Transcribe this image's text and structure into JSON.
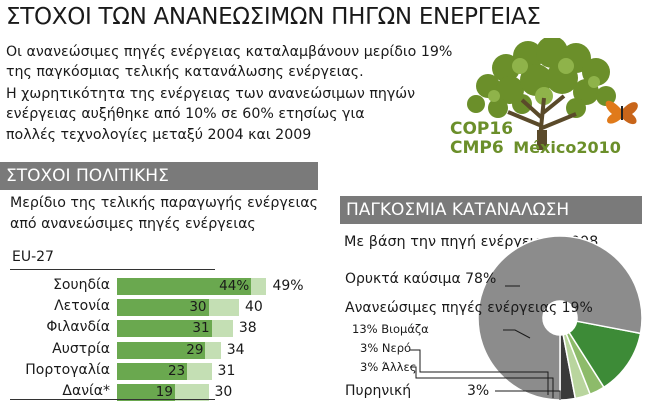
{
  "title": "ΣΤΟΧΟΙ ΤΩΝ ΑΝΑΝΕΩΣΙΜΩΝ ΠΗΓΩΝ ΕΝΕΡΓΕΙΑΣ",
  "intro": [
    "Οι ανανεώσιμες πηγές ενέργειας καταλαμβάνουν μερίδιο 19%",
    "της παγκόσμιας τελικής κατανάλωσης ενέργειας.",
    "Η χωρητικότητα της ενέργειας των ανανεώσιμων πηγών",
    "ενέργειας αυξήθηκε από 10% σε 60% ετησίως για",
    "πολλές τεχνολογίες μεταξύ 2004 και 2009"
  ],
  "logo": {
    "line1": "COP16",
    "line2": "CMP6",
    "city": "México2010",
    "color": "#6b8f2a"
  },
  "policy": {
    "heading": "ΣΤΟΧΟΙ ΠΟΛΙΤΙΚΗΣ",
    "subtitle": [
      "Μερίδιο της τελικής παραγωγής ενέργειας",
      "από ανανεώσιμες πηγές ενέργειας"
    ],
    "group_label": "EU-27"
  },
  "consumption": {
    "heading": "ΠΑΓΚΟΣΜΙΑ ΚΑΤΑΝΑΛΩΣΗ",
    "subtitle": "Με βάση την πηγή ενέργειας, 2008",
    "labels": {
      "fossil": "Ορυκτά καύσιμα 78%",
      "renewable": "Ανανεώσιμες πηγές ενέργειας 19%",
      "biomass": "13% Βιομάζα",
      "water": "3% Νερό",
      "other": "3% Άλλες",
      "nuclear": "Πυρηνική",
      "nuclear_value": "3%"
    }
  },
  "colors": {
    "current": "#6aa84f",
    "target": "#c4dfb4",
    "fossil": "#8c8c8c",
    "renewable": "#3d8b37",
    "nuclear": "#3a3a3a",
    "band": "#7a7a7a"
  },
  "chart_data": [
    {
      "type": "bar",
      "title": "ΣΤΟΧΟΙ ΠΟΛΙΤΙΚΗΣ",
      "categories": [
        "Σουηδία",
        "Λετονία",
        "Φιλανδία",
        "Αυστρία",
        "Πορτογαλία",
        "Δανία*"
      ],
      "series": [
        {
          "values": [
            44,
            30,
            31,
            29,
            23,
            19
          ],
          "labels": [
            "44%",
            "30",
            "31",
            "29",
            "23",
            "19"
          ]
        },
        {
          "values": [
            49,
            40,
            38,
            34,
            31,
            30
          ],
          "labels": [
            "49%",
            "40",
            "38",
            "34",
            "31",
            "30"
          ]
        }
      ],
      "xlim": [
        0,
        50
      ]
    },
    {
      "type": "pie",
      "title": "ΠΑΓΚΟΣΜΙΑ ΚΑΤΑΝΑΛΩΣΗ",
      "categories": [
        "Ορυκτά καύσιμα",
        "Βιομάζα",
        "Νερό",
        "Άλλες",
        "Πυρηνική"
      ],
      "values": [
        78,
        13,
        3,
        3,
        3
      ]
    }
  ]
}
